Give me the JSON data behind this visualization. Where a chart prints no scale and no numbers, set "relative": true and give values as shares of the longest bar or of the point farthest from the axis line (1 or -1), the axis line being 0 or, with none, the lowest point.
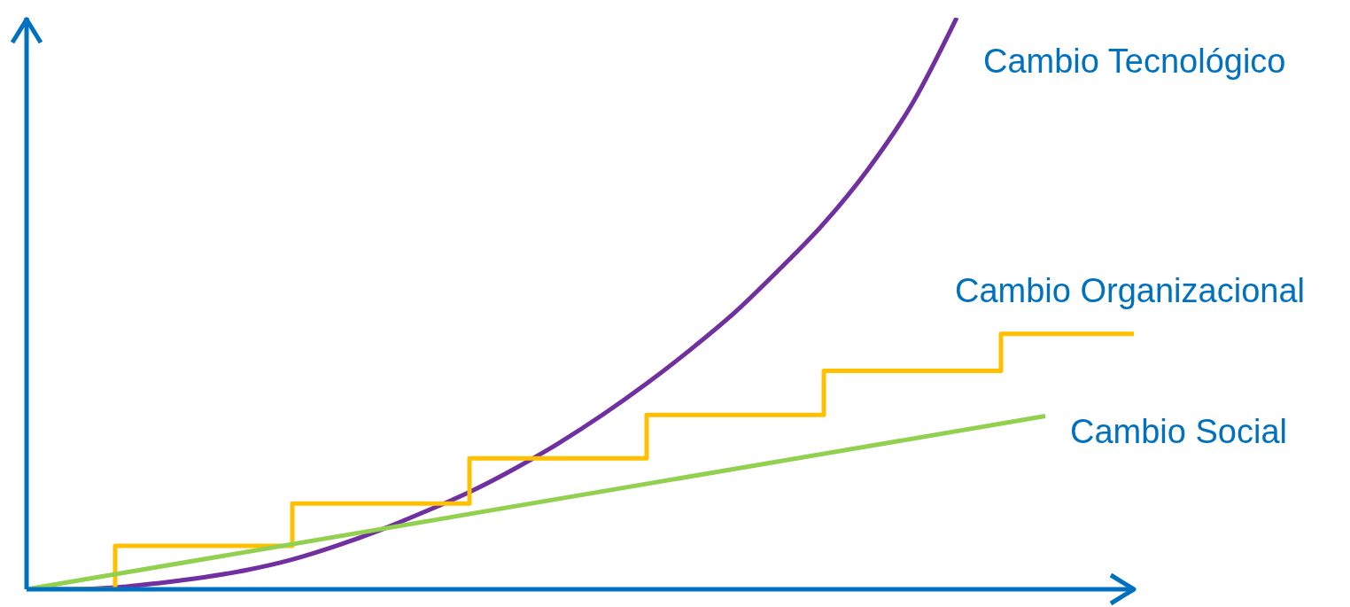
{
  "chart_data": {
    "type": "line",
    "relative": true,
    "legend": false,
    "grid": false,
    "marker": "none",
    "categories": [
      null,
      null,
      null,
      null,
      null,
      null,
      null,
      null,
      null,
      null,
      null,
      null,
      null,
      null,
      null,
      null,
      null,
      null,
      null,
      null,
      null,
      null,
      null,
      null,
      null,
      null
    ],
    "series": [
      {
        "name": "Cambio Tecnológico",
        "color": "#7030a0",
        "values": [
          0,
          0,
          0.003,
          0.011,
          0.021,
          0.034,
          0.052,
          0.076,
          0.104,
          0.136,
          0.17,
          0.21,
          0.255,
          0.305,
          0.36,
          0.42,
          0.485,
          0.56,
          0.64,
          0.735,
          0.85,
          1,
          null,
          null,
          null,
          null
        ]
      },
      {
        "name": "Cambio Organizacional",
        "type": "step",
        "color": "#ffc000",
        "values": [
          null,
          0,
          0.076,
          0.076,
          0.076,
          0.076,
          0.15,
          0.15,
          0.15,
          0.15,
          0.229,
          0.229,
          0.229,
          0.229,
          0.305,
          0.305,
          0.305,
          0.305,
          0.382,
          0.382,
          0.382,
          0.382,
          0.447,
          0.447,
          0.447,
          0.447
        ]
      },
      {
        "name": "Cambio Social",
        "color": "#92d050",
        "values": [
          0,
          null,
          null,
          null,
          null,
          null,
          null,
          null,
          null,
          null,
          null,
          null,
          null,
          null,
          null,
          null,
          null,
          null,
          null,
          null,
          null,
          null,
          null,
          0.303,
          null,
          null
        ]
      }
    ]
  }
}
